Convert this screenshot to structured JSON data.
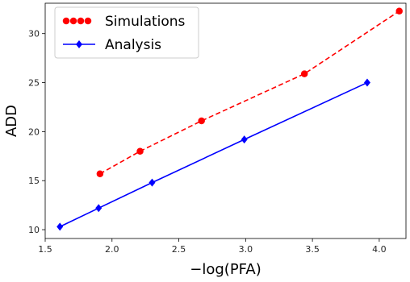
{
  "chart_data": {
    "type": "line",
    "xlabel": "−log(PFA)",
    "ylabel": "ADD",
    "xlim": [
      1.5,
      4.2
    ],
    "ylim": [
      9.1,
      33.1
    ],
    "xticks": [
      1.5,
      2.0,
      2.5,
      3.0,
      3.5,
      4.0
    ],
    "xtick_labels": [
      "1.5",
      "2.0",
      "2.5",
      "3.0",
      "3.5",
      "4.0"
    ],
    "yticks": [
      10,
      15,
      20,
      25,
      30
    ],
    "ytick_labels": [
      "10",
      "15",
      "20",
      "25",
      "30"
    ],
    "grid": false,
    "legend_position": "top-left",
    "series": [
      {
        "name": "Simulations",
        "color": "#ff0000",
        "line_style": "dashed",
        "marker": "circle",
        "x": [
          1.91,
          2.21,
          2.67,
          3.44,
          4.15
        ],
        "y": [
          15.7,
          18.0,
          21.1,
          25.9,
          32.3
        ]
      },
      {
        "name": "Analysis",
        "color": "#0000ff",
        "line_style": "solid",
        "marker": "diamond",
        "x": [
          1.61,
          1.9,
          2.3,
          2.99,
          3.91
        ],
        "y": [
          10.3,
          12.2,
          14.8,
          19.2,
          25.0
        ]
      }
    ]
  }
}
